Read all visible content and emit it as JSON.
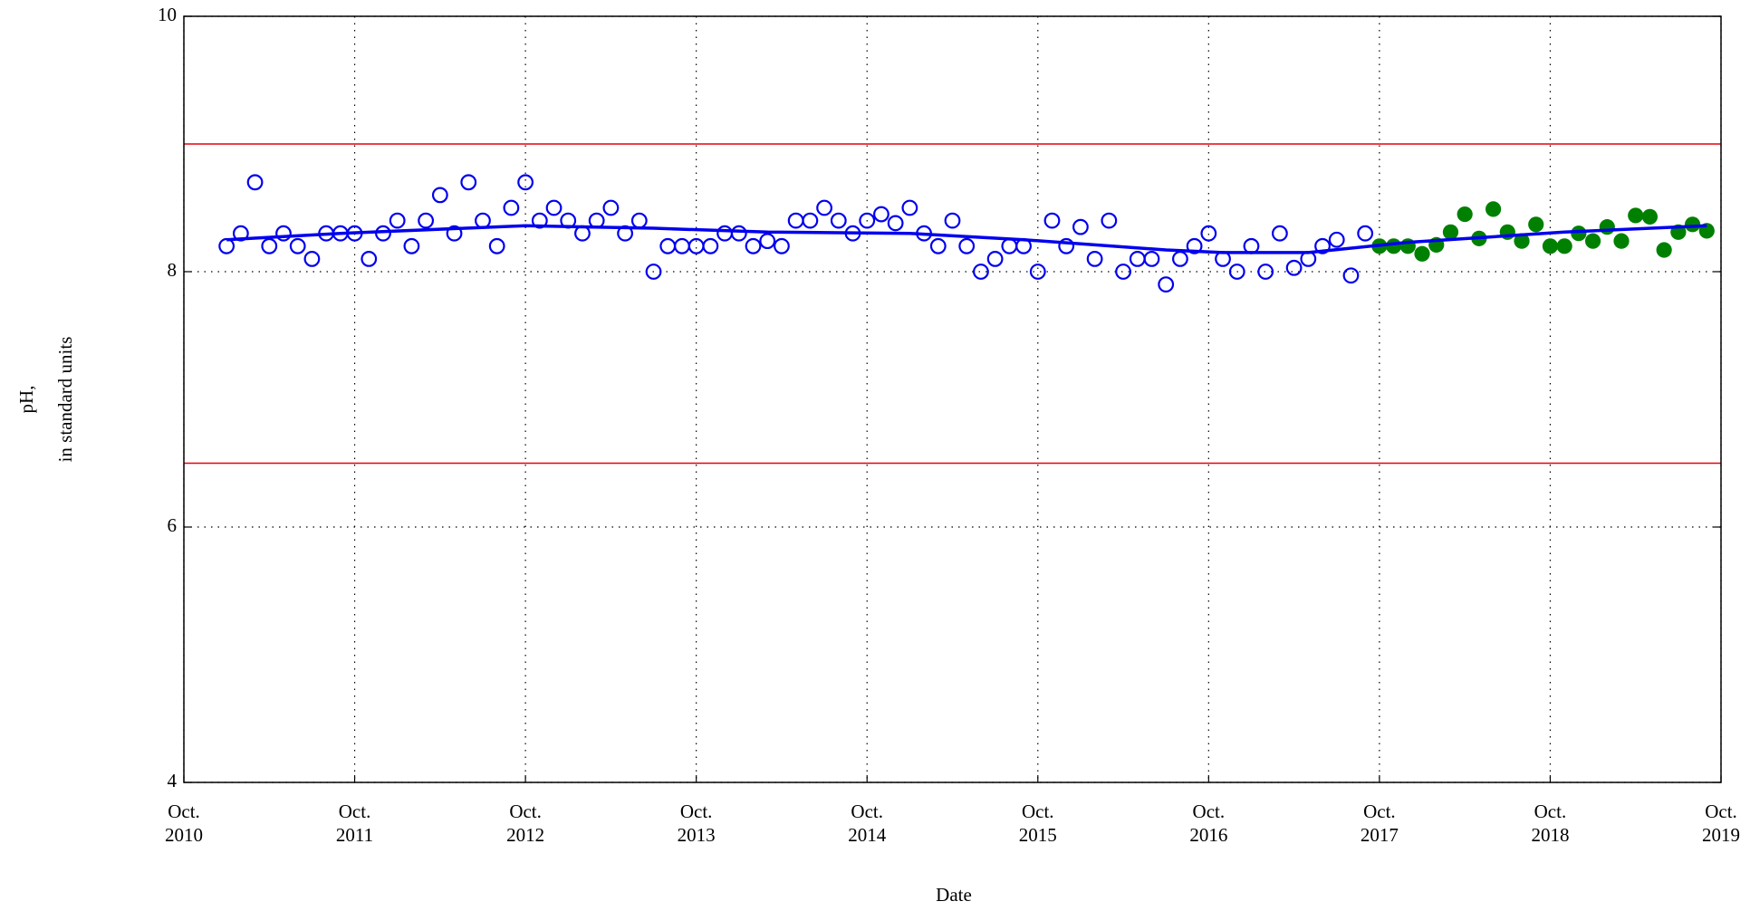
{
  "chart_data": {
    "type": "scatter",
    "xlabel": "Date",
    "ylabel": [
      "pH,",
      "in standard units"
    ],
    "xlim": [
      "2010-10",
      "2019-10"
    ],
    "xticks": [
      {
        "value": "2010-10",
        "label": "Oct.\n2010"
      },
      {
        "value": "2011-10",
        "label": "Oct.\n2011"
      },
      {
        "value": "2012-10",
        "label": "Oct.\n2012"
      },
      {
        "value": "2013-10",
        "label": "Oct.\n2013"
      },
      {
        "value": "2014-10",
        "label": "Oct.\n2014"
      },
      {
        "value": "2015-10",
        "label": "Oct.\n2015"
      },
      {
        "value": "2016-10",
        "label": "Oct.\n2016"
      },
      {
        "value": "2017-10",
        "label": "Oct.\n2017"
      },
      {
        "value": "2018-10",
        "label": "Oct.\n2018"
      },
      {
        "value": "2019-10",
        "label": "Oct.\n2019"
      }
    ],
    "ylim": [
      4,
      10
    ],
    "yticks": [
      4,
      6,
      8,
      10
    ],
    "grid": true,
    "reference_lines": {
      "color": "#e8000b",
      "values": [
        9,
        6.5
      ]
    },
    "series": [
      {
        "color": "#0000ee",
        "marker": "open",
        "x": [
          "2011-01",
          "2011-02",
          "2011-03",
          "2011-04",
          "2011-05",
          "2011-06",
          "2011-07",
          "2011-08",
          "2011-09",
          "2011-10",
          "2011-11",
          "2011-12",
          "2012-01",
          "2012-02",
          "2012-03",
          "2012-04",
          "2012-05",
          "2012-06",
          "2012-07",
          "2012-08",
          "2012-09",
          "2012-10",
          "2012-11",
          "2012-12",
          "2013-01",
          "2013-02",
          "2013-03",
          "2013-04",
          "2013-05",
          "2013-06",
          "2013-07",
          "2013-08",
          "2013-09",
          "2013-10",
          "2013-11",
          "2013-12",
          "2014-01",
          "2014-02",
          "2014-03",
          "2014-04",
          "2014-05",
          "2014-06",
          "2014-07",
          "2014-08",
          "2014-09",
          "2014-10",
          "2014-11",
          "2014-12",
          "2015-01",
          "2015-02",
          "2015-03",
          "2015-04",
          "2015-05",
          "2015-06",
          "2015-07",
          "2015-08",
          "2015-09",
          "2015-10",
          "2015-11",
          "2015-12",
          "2016-01",
          "2016-02",
          "2016-03",
          "2016-04",
          "2016-05",
          "2016-06",
          "2016-07",
          "2016-08",
          "2016-09",
          "2016-10",
          "2016-11",
          "2016-12",
          "2017-01",
          "2017-02",
          "2017-03",
          "2017-04",
          "2017-05",
          "2017-06",
          "2017-07",
          "2017-08",
          "2017-09"
        ],
        "values": [
          8.2,
          8.3,
          8.7,
          8.2,
          8.3,
          8.2,
          8.1,
          8.3,
          8.3,
          8.3,
          8.1,
          8.3,
          8.4,
          8.2,
          8.4,
          8.6,
          8.3,
          8.7,
          8.4,
          8.2,
          8.5,
          8.7,
          8.4,
          8.5,
          8.4,
          8.3,
          8.4,
          8.5,
          8.3,
          8.4,
          8.0,
          8.2,
          8.2,
          8.2,
          8.2,
          8.3,
          8.3,
          8.2,
          8.24,
          8.2,
          8.4,
          8.4,
          8.5,
          8.4,
          8.3,
          8.4,
          8.45,
          8.38,
          8.5,
          8.3,
          8.2,
          8.4,
          8.2,
          8.0,
          8.1,
          8.2,
          8.2,
          8.0,
          8.4,
          8.2,
          8.35,
          8.1,
          8.4,
          8.0,
          8.1,
          8.1,
          7.9,
          8.1,
          8.2,
          8.3,
          8.1,
          8.0,
          8.2,
          8.0,
          8.3,
          8.03,
          8.1,
          8.2,
          8.25,
          7.97,
          8.3
        ]
      },
      {
        "color": "#008000",
        "marker": "filled",
        "x": [
          "2017-10",
          "2017-11",
          "2017-12",
          "2018-01",
          "2018-02",
          "2018-03",
          "2018-04",
          "2018-05",
          "2018-06",
          "2018-07",
          "2018-08",
          "2018-09",
          "2018-10",
          "2018-11",
          "2018-12",
          "2019-01",
          "2019-02",
          "2019-03",
          "2019-04",
          "2019-05",
          "2019-06",
          "2019-07",
          "2019-08",
          "2019-09"
        ],
        "values": [
          8.2,
          8.2,
          8.2,
          8.14,
          8.21,
          8.31,
          8.45,
          8.26,
          8.49,
          8.31,
          8.24,
          8.37,
          8.2,
          8.2,
          8.3,
          8.24,
          8.35,
          8.24,
          8.44,
          8.43,
          8.17,
          8.31,
          8.37,
          8.32
        ]
      },
      {
        "color": "#0000ee",
        "marker": "line",
        "x": [
          "2011-01",
          "2011-09",
          "2012-10",
          "2013-07",
          "2014-03",
          "2015-01",
          "2015-09",
          "2016-07",
          "2016-11",
          "2017-05",
          "2017-12",
          "2018-11",
          "2019-09"
        ],
        "values": [
          8.25,
          8.3,
          8.36,
          8.34,
          8.31,
          8.3,
          8.25,
          8.17,
          8.15,
          8.15,
          8.23,
          8.31,
          8.36
        ]
      }
    ]
  }
}
